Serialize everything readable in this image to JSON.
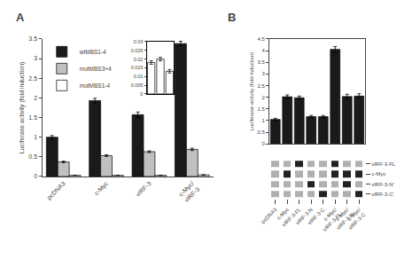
{
  "chart_data": [
    {
      "type": "bar",
      "title": "A",
      "categories": [
        "pcDNA3",
        "c-Myc",
        "vIRF-3",
        "c-Myc/\nvIRF-3"
      ],
      "series": [
        {
          "name": "wtMBS1-4",
          "color": "#1a1a1a",
          "values": [
            1.0,
            1.93,
            1.57,
            3.38
          ],
          "errors": [
            0.04,
            0.06,
            0.07,
            0.06
          ]
        },
        {
          "name": "mutMBS3+4",
          "color": "#c0c0c0",
          "values": [
            0.37,
            0.53,
            0.63,
            0.69
          ],
          "errors": [
            0.02,
            0.02,
            0.02,
            0.03
          ]
        },
        {
          "name": "mutMBS1-4",
          "color": "#ffffff",
          "values": [
            0.03,
            0.03,
            0.03,
            0.04
          ],
          "errors": [
            0.002,
            0.002,
            0.002,
            0.002
          ]
        }
      ],
      "ylabel": "Luciferase activity (fold induction)",
      "ylim": [
        0,
        3.5
      ],
      "yticks": [
        0,
        0.5,
        1,
        1.5,
        2,
        2.5,
        3,
        3.5
      ],
      "grid": false,
      "legend": "upper left"
    },
    {
      "type": "bar",
      "categories": [
        null,
        null,
        null
      ],
      "values": [
        0.018,
        0.02,
        0.013
      ],
      "errors": [
        0.001,
        0.001,
        0.001
      ],
      "color": "#ffffff",
      "ylim": [
        0,
        0.03
      ],
      "yticks": [
        0,
        0.005,
        0.01,
        0.015,
        0.02,
        0.025,
        0.03
      ],
      "grid": false,
      "tick_labels": "y"
    },
    {
      "type": "bar",
      "title": "B",
      "categories": [
        "pcDNA3",
        "c-Myc",
        "vIRF-3-FL",
        "vIRF-3-N",
        "vIRF-3-C",
        "c-Myc/\nvIRF-3-FL",
        "c-Myc/\nvIRF-3-N",
        "c-Myc/\nvIRF-3-C"
      ],
      "values": [
        1.05,
        2.02,
        1.98,
        1.17,
        1.17,
        4.05,
        2.03,
        2.05
      ],
      "errors": [
        0.05,
        0.08,
        0.07,
        0.05,
        0.05,
        0.12,
        0.1,
        0.1
      ],
      "color": "#1a1a1a",
      "ylabel": "Luciferase activity (fold induction)",
      "ylim": [
        0,
        4.5
      ],
      "yticks": [
        0,
        0.5,
        1,
        1.5,
        2,
        2.5,
        3,
        3.5,
        4,
        4.5
      ],
      "grid": false,
      "tick_labels": "y"
    },
    {
      "type": "heatmap",
      "categories": [
        "pcDNA3",
        "c-Myc",
        "vIRF-3-FL",
        "vIRF-3-N",
        "vIRF-3-C",
        "c-Myc/\nvIRF-3-FL",
        "c-Myc/\nvIRF-3-N",
        "c-Myc/\nvIRF-3-C"
      ],
      "rows": [
        "vIRF-3-FL",
        "c-Myc",
        "vIRF-3-N'",
        "vIRF-3-C'"
      ],
      "cells": [
        [
          0,
          0,
          1,
          0,
          0,
          1,
          0,
          0
        ],
        [
          0,
          1,
          0,
          0,
          0,
          1,
          1,
          1
        ],
        [
          0,
          0,
          0,
          1,
          0,
          0,
          1,
          0
        ],
        [
          0,
          0,
          0,
          0,
          1,
          0,
          0,
          1
        ]
      ],
      "colors": [
        "#b0b0b0",
        "#222222"
      ],
      "grid": false
    }
  ]
}
